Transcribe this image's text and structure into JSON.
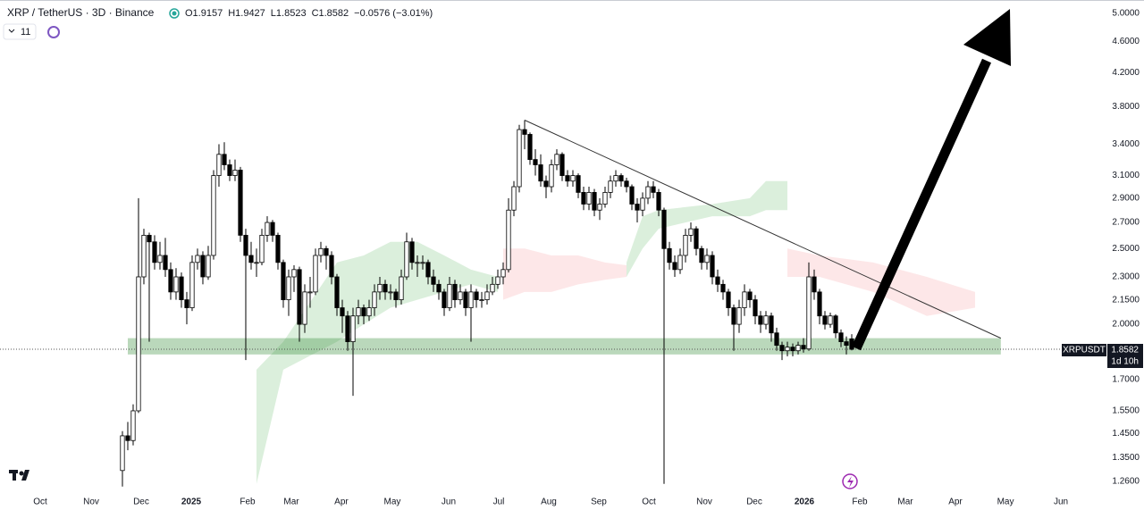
{
  "chart_data": {
    "type": "candlestick",
    "title": "XRP / TetherUS · 3D · Binance",
    "legend_values": [
      "O1.9157",
      "H1.9427",
      "L1.8523",
      "C1.8582",
      "−0.0576 (−3.01%)"
    ],
    "indicator_count": 11,
    "price_tag": {
      "symbol": "XRPUSDT",
      "countdown": "1d 10h"
    },
    "log_scale": true,
    "up_color": "#ffffff",
    "down_color": "#000000",
    "xlim": [
      -22.83,
      175.5
    ],
    "xticks": [
      {
        "value": -15.33,
        "label": "Oct"
      },
      {
        "value": -5.83,
        "label": "Nov"
      },
      {
        "value": 3.5,
        "label": "Dec"
      },
      {
        "value": 12.83,
        "label": "2025"
      },
      {
        "value": 23.33,
        "label": "Feb"
      },
      {
        "value": 31.5,
        "label": "Mar"
      },
      {
        "value": 40.83,
        "label": "Apr"
      },
      {
        "value": 50.33,
        "label": "May"
      },
      {
        "value": 60.83,
        "label": "Jun"
      },
      {
        "value": 70.17,
        "label": "Jul"
      },
      {
        "value": 79.5,
        "label": "Aug"
      },
      {
        "value": 88.83,
        "label": "Sep"
      },
      {
        "value": 98.17,
        "label": "Oct"
      },
      {
        "value": 108.5,
        "label": "Nov"
      },
      {
        "value": 117.83,
        "label": "Dec"
      },
      {
        "value": 127.17,
        "label": "2026"
      },
      {
        "value": 137.5,
        "label": "Feb"
      },
      {
        "value": 146,
        "label": "Mar"
      },
      {
        "value": 155.33,
        "label": "Apr"
      },
      {
        "value": 164.67,
        "label": "May"
      },
      {
        "value": 175,
        "label": "Jun"
      }
    ],
    "ylim": [
      1.223,
      5.2
    ],
    "yticks": [
      {
        "value": 5,
        "label": "5.0000"
      },
      {
        "value": 4.6,
        "label": "4.6000"
      },
      {
        "value": 4.2,
        "label": "4.2000"
      },
      {
        "value": 3.8,
        "label": "3.8000"
      },
      {
        "value": 3.4,
        "label": "3.4000"
      },
      {
        "value": 3.1,
        "label": "3.1000"
      },
      {
        "value": 2.9,
        "label": "2.9000"
      },
      {
        "value": 2.7,
        "label": "2.7000"
      },
      {
        "value": 2.5,
        "label": "2.5000"
      },
      {
        "value": 2.3,
        "label": "2.3000"
      },
      {
        "value": 2.15,
        "label": "2.1500"
      },
      {
        "value": 2,
        "label": "2.0000"
      },
      {
        "value": 1.7,
        "label": "1.7000"
      },
      {
        "value": 1.55,
        "label": "1.5500"
      },
      {
        "value": 1.45,
        "label": "1.4500"
      },
      {
        "value": 1.35,
        "label": "1.3500"
      },
      {
        "value": 1.26,
        "label": "1.2600"
      }
    ],
    "x": [
      0,
      1,
      2,
      3,
      4,
      5,
      6,
      7,
      8,
      9,
      10,
      11,
      12,
      13,
      14,
      15,
      16,
      17,
      18,
      19,
      20,
      21,
      22,
      23,
      24,
      25,
      26,
      27,
      28,
      29,
      30,
      31,
      32,
      33,
      34,
      35,
      36,
      37,
      38,
      39,
      40,
      41,
      42,
      43,
      44,
      45,
      46,
      47,
      48,
      49,
      50,
      51,
      52,
      53,
      54,
      55,
      56,
      57,
      58,
      59,
      60,
      61,
      62,
      63,
      64,
      65,
      66,
      67,
      68,
      69,
      70,
      71,
      72,
      73,
      74,
      75,
      76,
      77,
      78,
      79,
      80,
      81,
      82,
      83,
      84,
      85,
      86,
      87,
      88,
      89,
      90,
      91,
      92,
      93,
      94,
      95,
      96,
      97,
      98,
      99,
      100,
      101,
      102,
      103,
      104,
      105,
      106,
      107,
      108,
      109,
      110,
      111,
      112,
      113,
      114,
      115,
      116,
      117,
      118,
      119,
      120,
      121,
      122,
      123,
      124,
      125,
      126,
      127,
      128,
      129,
      130,
      131,
      132,
      133,
      134,
      135,
      136
    ],
    "open": [
      1.3,
      1.44,
      1.42,
      1.55,
      2.3,
      2.6,
      2.55,
      2.4,
      2.45,
      2.35,
      2.2,
      2.3,
      2.15,
      2.1,
      2.4,
      2.45,
      2.3,
      2.45,
      3.1,
      3.3,
      3.2,
      3.1,
      3.15,
      2.6,
      2.45,
      2.4,
      2.4,
      2.6,
      2.7,
      2.6,
      2.4,
      2.15,
      2.3,
      2.35,
      2.0,
      2.2,
      2.2,
      2.45,
      2.5,
      2.45,
      2.3,
      2.1,
      2.05,
      1.9,
      2.05,
      2.1,
      2.05,
      2.1,
      2.2,
      2.25,
      2.2,
      2.2,
      2.15,
      2.3,
      2.55,
      2.4,
      2.4,
      2.4,
      2.3,
      2.25,
      2.2,
      2.1,
      2.25,
      2.15,
      2.2,
      2.1,
      2.2,
      2.15,
      2.15,
      2.2,
      2.25,
      2.3,
      2.35,
      2.8,
      3.0,
      3.55,
      3.5,
      3.25,
      3.2,
      3.05,
      3.0,
      3.2,
      3.3,
      3.1,
      3.05,
      3.1,
      2.95,
      2.85,
      2.95,
      2.8,
      2.85,
      2.95,
      3.05,
      3.1,
      3.05,
      3.0,
      2.85,
      2.8,
      2.9,
      3.0,
      2.95,
      2.8,
      2.5,
      2.4,
      2.35,
      2.45,
      2.6,
      2.65,
      2.5,
      2.4,
      2.45,
      2.3,
      2.25,
      2.2,
      2.1,
      2.0,
      2.1,
      2.2,
      2.15,
      2.05,
      2.0,
      2.05,
      1.95,
      1.88,
      1.85,
      1.87,
      1.85,
      1.88,
      1.86,
      2.3,
      2.2,
      2.05,
      2.0,
      2.05,
      1.95,
      1.9,
      1.9157
    ],
    "high": [
      1.46,
      1.5,
      1.58,
      2.9,
      2.65,
      2.62,
      2.6,
      2.55,
      2.58,
      2.4,
      2.36,
      2.33,
      2.2,
      2.45,
      2.5,
      2.48,
      2.52,
      3.15,
      3.4,
      3.42,
      3.25,
      3.25,
      3.18,
      2.65,
      2.55,
      2.5,
      2.65,
      2.75,
      2.72,
      2.62,
      2.42,
      2.35,
      2.38,
      2.37,
      2.25,
      2.3,
      2.5,
      2.55,
      2.52,
      2.48,
      2.32,
      2.15,
      2.08,
      2.1,
      2.15,
      2.12,
      2.15,
      2.25,
      2.3,
      2.28,
      2.25,
      2.22,
      2.35,
      2.62,
      2.58,
      2.45,
      2.45,
      2.42,
      2.35,
      2.28,
      2.22,
      2.3,
      2.28,
      2.25,
      2.22,
      2.25,
      2.22,
      2.2,
      2.25,
      2.3,
      2.35,
      2.4,
      2.9,
      3.05,
      3.6,
      3.65,
      3.52,
      3.35,
      3.3,
      3.1,
      3.25,
      3.35,
      3.32,
      3.15,
      3.15,
      3.12,
      3.0,
      3.0,
      2.98,
      2.9,
      3.0,
      3.1,
      3.15,
      3.12,
      3.08,
      3.02,
      2.9,
      2.95,
      3.05,
      3.05,
      2.98,
      2.82,
      2.55,
      2.45,
      2.5,
      2.65,
      2.7,
      2.67,
      2.52,
      2.5,
      2.48,
      2.35,
      2.28,
      2.22,
      2.12,
      2.15,
      2.25,
      2.22,
      2.18,
      2.08,
      2.08,
      2.07,
      1.98,
      1.9,
      1.9,
      1.89,
      1.9,
      1.92,
      2.4,
      2.35,
      2.22,
      2.08,
      2.07,
      2.06,
      1.97,
      1.93,
      1.9427
    ],
    "low": [
      1.24,
      1.38,
      1.4,
      1.54,
      2.25,
      1.9,
      2.35,
      2.35,
      2.3,
      2.15,
      2.15,
      2.1,
      2.0,
      2.08,
      2.35,
      2.25,
      2.28,
      2.42,
      3.0,
      3.15,
      3.05,
      3.05,
      2.55,
      1.8,
      2.35,
      2.3,
      2.38,
      2.55,
      2.55,
      2.35,
      2.1,
      2.05,
      2.2,
      1.9,
      1.95,
      2.1,
      2.18,
      2.4,
      2.35,
      2.25,
      2.05,
      1.95,
      1.85,
      1.62,
      2.0,
      2.0,
      2.02,
      2.05,
      2.15,
      2.15,
      2.15,
      2.1,
      2.12,
      2.28,
      2.35,
      2.3,
      2.35,
      2.25,
      2.2,
      2.15,
      2.05,
      2.08,
      2.1,
      2.12,
      2.05,
      1.9,
      2.1,
      2.1,
      2.12,
      2.18,
      2.22,
      2.25,
      2.33,
      2.75,
      2.95,
      3.35,
      3.2,
      3.1,
      3.0,
      2.9,
      2.95,
      3.15,
      3.05,
      3.0,
      3.0,
      2.9,
      2.8,
      2.8,
      2.75,
      2.72,
      2.82,
      2.9,
      3.0,
      3.0,
      2.95,
      2.8,
      2.7,
      2.75,
      2.85,
      2.9,
      2.75,
      1.25,
      2.35,
      2.3,
      2.32,
      2.4,
      2.55,
      2.45,
      2.35,
      2.35,
      2.25,
      2.2,
      2.15,
      2.05,
      1.85,
      1.95,
      2.05,
      2.1,
      2.0,
      1.95,
      1.97,
      1.9,
      1.85,
      1.8,
      1.82,
      1.82,
      1.83,
      1.84,
      1.85,
      2.15,
      2.0,
      1.97,
      1.98,
      1.92,
      1.87,
      1.83,
      1.8523
    ],
    "close": [
      1.44,
      1.42,
      1.55,
      2.3,
      2.6,
      2.55,
      2.4,
      2.45,
      2.35,
      2.2,
      2.3,
      2.15,
      2.1,
      2.4,
      2.45,
      2.3,
      2.45,
      3.1,
      3.3,
      3.2,
      3.1,
      3.15,
      2.6,
      2.45,
      2.4,
      2.4,
      2.6,
      2.7,
      2.6,
      2.4,
      2.15,
      2.3,
      2.35,
      2.0,
      2.2,
      2.2,
      2.45,
      2.5,
      2.45,
      2.3,
      2.1,
      2.05,
      1.9,
      2.05,
      2.1,
      2.05,
      2.1,
      2.2,
      2.25,
      2.2,
      2.2,
      2.15,
      2.3,
      2.55,
      2.4,
      2.4,
      2.4,
      2.3,
      2.25,
      2.2,
      2.1,
      2.25,
      2.15,
      2.2,
      2.1,
      2.2,
      2.15,
      2.15,
      2.2,
      2.25,
      2.3,
      2.35,
      2.8,
      3.0,
      3.55,
      3.5,
      3.25,
      3.2,
      3.05,
      3.0,
      3.2,
      3.3,
      3.1,
      3.05,
      3.1,
      2.95,
      2.85,
      2.95,
      2.8,
      2.85,
      2.95,
      3.05,
      3.1,
      3.05,
      3.0,
      2.85,
      2.8,
      2.9,
      3.0,
      2.95,
      2.8,
      2.5,
      2.4,
      2.35,
      2.45,
      2.6,
      2.65,
      2.5,
      2.4,
      2.45,
      2.3,
      2.25,
      2.2,
      2.1,
      2.0,
      2.1,
      2.2,
      2.15,
      2.05,
      2.0,
      2.05,
      1.95,
      1.88,
      1.85,
      1.87,
      1.85,
      1.88,
      1.86,
      2.3,
      2.2,
      2.05,
      2.0,
      2.05,
      1.95,
      1.9,
      1.88,
      1.8582
    ],
    "cloud": [
      {
        "color": "rgba(76,175,80,0.2)",
        "x": [
          25,
          30,
          40,
          45,
          50,
          55,
          60,
          65,
          70
        ],
        "upper": [
          1.75,
          1.9,
          2.4,
          2.45,
          2.55,
          2.55,
          2.45,
          2.35,
          2.3
        ],
        "lower": [
          1.25,
          1.75,
          1.9,
          2.0,
          2.1,
          2.15,
          2.2,
          2.25,
          2.2
        ]
      },
      {
        "color": "rgba(242,54,69,0.12)",
        "x": [
          71,
          75,
          80,
          85,
          90,
          94
        ],
        "upper": [
          2.5,
          2.5,
          2.45,
          2.45,
          2.4,
          2.38
        ],
        "lower": [
          2.15,
          2.2,
          2.2,
          2.25,
          2.28,
          2.3
        ]
      },
      {
        "color": "rgba(76,175,80,0.2)",
        "x": [
          94,
          97,
          100,
          110,
          117,
          120,
          124
        ],
        "upper": [
          2.4,
          2.75,
          2.8,
          2.85,
          2.9,
          3.05,
          3.05
        ],
        "lower": [
          2.3,
          2.5,
          2.65,
          2.75,
          2.75,
          2.8,
          2.8
        ]
      },
      {
        "color": "rgba(242,54,69,0.12)",
        "x": [
          124,
          130,
          140,
          150,
          159
        ],
        "upper": [
          2.5,
          2.45,
          2.4,
          2.3,
          2.2
        ],
        "lower": [
          2.3,
          2.3,
          2.2,
          2.05,
          2.1
        ]
      }
    ],
    "zone": {
      "color": "rgba(56,142,60,0.35)",
      "from": 1.83,
      "to": 1.92,
      "x": [
        1,
        163.8
      ]
    },
    "trendline": {
      "color": "#333333",
      "x": [
        75,
        163.8
      ],
      "y": [
        3.65,
        1.92
      ]
    }
  }
}
